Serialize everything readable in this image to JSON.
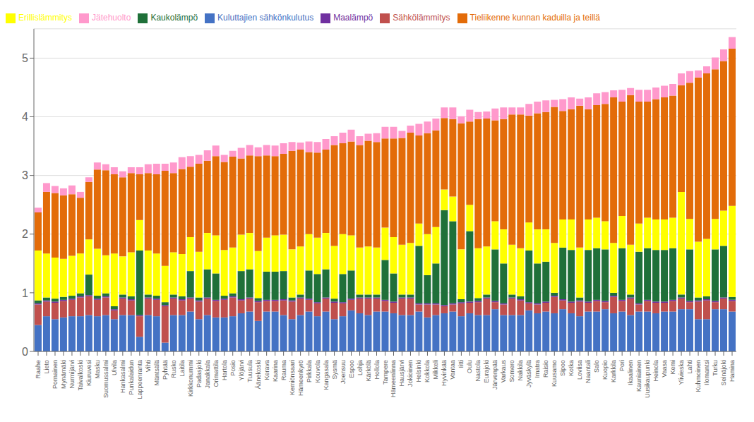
{
  "chart_data": {
    "type": "bar",
    "stacked": true,
    "grid": true,
    "legend": "upper left",
    "categories": [
      "Raahe",
      "Lieto",
      "Pornainen",
      "Mynämäki",
      "Nurmijärvi",
      "Taivalkoski",
      "Kiuruvesi",
      "Masku",
      "Suomussalmi",
      "Ulvila",
      "Hankasalmi",
      "Punkalaidun",
      "Lappeenranta",
      "Vihti",
      "Mäntsälä",
      "Pyhtää",
      "Rusko",
      "Laitila",
      "Kirkkonummi",
      "Padasjoki",
      "Janakkala",
      "Orimattila",
      "Hartola",
      "Posio",
      "Ylöjärvi",
      "Tuusula",
      "Äänekoski",
      "Kerava",
      "Kaarina",
      "Rauma",
      "Kemiönsaari",
      "Hämeenkyrö",
      "Pirkkala",
      "Kouvola",
      "Kangasala",
      "Sysmä",
      "Joensuu",
      "Espoo",
      "Lohja",
      "Kärkölä",
      "Hollola",
      "Tampere",
      "Hämeenlinna",
      "Hausjärvi",
      "Jokioinen",
      "Helsinki",
      "Kokkola",
      "Mikkeli",
      "Hyvinkää",
      "Vantaa",
      "Iitti",
      "Oulu",
      "Nastola",
      "Eurajoki",
      "Järvenpää",
      "Varkaus",
      "Somero",
      "Nakkila",
      "Jyväskylä",
      "Imatra",
      "Raisio",
      "Kuusamo",
      "Sipoo",
      "Kotka",
      "Loviisa",
      "Naantali",
      "Salo",
      "Kuopio",
      "Karkkila",
      "Pori",
      "Ikaalinen",
      "Kauniainen",
      "Uusikaupunki",
      "Heinola",
      "Vaasa",
      "Kemi",
      "Ylivieska",
      "Lahti",
      "Kuhmoinen",
      "Ilomantsi",
      "Turku",
      "Seinäjoki",
      "Hamina"
    ],
    "series": [
      {
        "name": "Kuluttajien sähkönkulutus",
        "color": "#4472C4",
        "values": [
          0.45,
          0.6,
          0.55,
          0.58,
          0.6,
          0.6,
          0.62,
          0.6,
          0.62,
          0.55,
          0.62,
          0.62,
          0.25,
          0.62,
          0.6,
          0.15,
          0.62,
          0.62,
          0.68,
          0.55,
          0.62,
          0.58,
          0.58,
          0.6,
          0.65,
          0.68,
          0.52,
          0.68,
          0.68,
          0.62,
          0.55,
          0.62,
          0.68,
          0.6,
          0.68,
          0.55,
          0.6,
          0.7,
          0.65,
          0.62,
          0.68,
          0.68,
          0.65,
          0.62,
          0.62,
          0.68,
          0.58,
          0.62,
          0.65,
          0.68,
          0.6,
          0.65,
          0.62,
          0.62,
          0.72,
          0.62,
          0.62,
          0.62,
          0.7,
          0.65,
          0.68,
          0.65,
          0.72,
          0.65,
          0.6,
          0.68,
          0.68,
          0.72,
          0.65,
          0.68,
          0.62,
          0.68,
          0.68,
          0.65,
          0.68,
          0.68,
          0.72,
          0.72,
          0.55,
          0.55,
          0.72,
          0.72,
          0.68
        ]
      },
      {
        "name": "Sähkölämmitys",
        "color": "#C0504D",
        "values": [
          0.35,
          0.25,
          0.28,
          0.28,
          0.28,
          0.32,
          0.32,
          0.28,
          0.3,
          0.15,
          0.28,
          0.25,
          0.35,
          0.28,
          0.28,
          0.62,
          0.28,
          0.25,
          0.22,
          0.3,
          0.28,
          0.28,
          0.3,
          0.32,
          0.22,
          0.22,
          0.32,
          0.18,
          0.18,
          0.25,
          0.3,
          0.28,
          0.2,
          0.22,
          0.22,
          0.28,
          0.22,
          0.18,
          0.25,
          0.28,
          0.22,
          0.18,
          0.18,
          0.28,
          0.28,
          0.12,
          0.22,
          0.18,
          0.12,
          0.12,
          0.22,
          0.18,
          0.22,
          0.28,
          0.12,
          0.18,
          0.28,
          0.25,
          0.12,
          0.15,
          0.15,
          0.28,
          0.15,
          0.18,
          0.25,
          0.15,
          0.18,
          0.12,
          0.28,
          0.18,
          0.28,
          0.12,
          0.18,
          0.18,
          0.15,
          0.18,
          0.18,
          0.12,
          0.3,
          0.32,
          0.12,
          0.18,
          0.18
        ]
      },
      {
        "name": "Maalämpö",
        "color": "#7030A0",
        "values": [
          0.02,
          0.02,
          0.02,
          0.02,
          0.02,
          0.02,
          0.02,
          0.02,
          0.02,
          0.02,
          0.02,
          0.02,
          0.02,
          0.02,
          0.02,
          0.02,
          0.02,
          0.02,
          0.02,
          0.02,
          0.02,
          0.02,
          0.02,
          0.02,
          0.02,
          0.02,
          0.02,
          0.02,
          0.02,
          0.02,
          0.02,
          0.02,
          0.02,
          0.02,
          0.02,
          0.02,
          0.02,
          0.02,
          0.02,
          0.02,
          0.02,
          0.02,
          0.02,
          0.02,
          0.02,
          0.02,
          0.02,
          0.02,
          0.02,
          0.02,
          0.02,
          0.02,
          0.02,
          0.02,
          0.02,
          0.02,
          0.02,
          0.02,
          0.02,
          0.02,
          0.02,
          0.02,
          0.02,
          0.02,
          0.02,
          0.02,
          0.02,
          0.02,
          0.02,
          0.02,
          0.02,
          0.02,
          0.02,
          0.02,
          0.02,
          0.02,
          0.02,
          0.02,
          0.02,
          0.02,
          0.02,
          0.02,
          0.02
        ]
      },
      {
        "name": "Kaukolämpö",
        "color": "#1F7039",
        "values": [
          0.05,
          0.05,
          0.05,
          0.05,
          0.05,
          0.05,
          0.35,
          0.05,
          0.05,
          0.05,
          0.05,
          0.05,
          1.1,
          0.05,
          0.05,
          0.05,
          0.05,
          0.05,
          0.45,
          0.05,
          0.48,
          0.45,
          0.05,
          0.05,
          0.48,
          0.48,
          0.05,
          0.48,
          0.48,
          0.48,
          0.05,
          0.05,
          0.48,
          0.48,
          0.48,
          0.05,
          0.48,
          0.48,
          0.05,
          0.05,
          0.05,
          0.68,
          0.48,
          0.05,
          0.05,
          0.98,
          0.48,
          0.68,
          1.62,
          1.4,
          0.05,
          1.2,
          0.05,
          0.05,
          0.88,
          0.68,
          0.05,
          0.05,
          0.88,
          0.68,
          0.68,
          0.05,
          0.88,
          0.88,
          0.05,
          0.88,
          0.88,
          0.88,
          0.05,
          0.88,
          0.05,
          0.88,
          0.88,
          0.88,
          0.88,
          0.88,
          0.05,
          0.88,
          0.05,
          0.05,
          0.88,
          0.88,
          0.05
        ]
      },
      {
        "name": "Erillislämmitys",
        "color": "#FFFF00",
        "values": [
          0.85,
          0.75,
          0.7,
          0.65,
          0.68,
          0.68,
          0.6,
          0.8,
          0.65,
          0.9,
          0.65,
          0.75,
          0.52,
          0.75,
          0.72,
          0.62,
          0.72,
          0.72,
          0.58,
          0.78,
          0.62,
          0.65,
          0.78,
          0.78,
          0.62,
          0.62,
          0.8,
          0.58,
          0.62,
          0.62,
          0.82,
          0.82,
          0.62,
          0.62,
          0.62,
          0.9,
          0.68,
          0.6,
          0.8,
          0.82,
          0.8,
          0.55,
          0.62,
          0.85,
          0.88,
          0.38,
          0.7,
          0.62,
          0.35,
          0.42,
          0.85,
          0.45,
          0.85,
          0.82,
          0.48,
          0.58,
          0.85,
          0.82,
          0.48,
          0.58,
          0.55,
          0.85,
          0.48,
          0.52,
          0.85,
          0.52,
          0.52,
          0.48,
          0.85,
          0.55,
          0.85,
          0.48,
          0.52,
          0.52,
          0.52,
          0.52,
          1.75,
          0.52,
          0.95,
          0.98,
          0.52,
          0.6,
          1.55
        ]
      },
      {
        "name": "Tieliikenne kunnan kaduilla ja teillä",
        "color": "#E36C09",
        "values": [
          0.65,
          1.05,
          1.1,
          1.08,
          1.05,
          0.95,
          0.98,
          1.35,
          1.45,
          1.35,
          1.35,
          1.35,
          0.78,
          1.32,
          1.35,
          1.62,
          1.35,
          1.45,
          1.2,
          1.5,
          1.23,
          1.35,
          1.5,
          1.55,
          1.3,
          1.32,
          1.62,
          1.4,
          1.35,
          1.38,
          1.68,
          1.65,
          1.4,
          1.45,
          1.42,
          1.72,
          1.55,
          1.6,
          1.75,
          1.8,
          1.8,
          1.52,
          1.68,
          1.82,
          1.88,
          1.5,
          1.72,
          1.65,
          1.22,
          1.32,
          2.15,
          1.42,
          2.2,
          2.18,
          1.72,
          1.88,
          2.22,
          2.28,
          1.82,
          1.98,
          2.0,
          2.32,
          1.85,
          1.88,
          2.42,
          1.88,
          1.92,
          2.0,
          2.48,
          1.95,
          2.55,
          2.08,
          1.98,
          2.05,
          2.08,
          2.08,
          1.82,
          2.32,
          2.8,
          2.82,
          2.55,
          2.55,
          2.68
        ]
      },
      {
        "name": "Jätehuolto",
        "color": "#FF99CC",
        "values": [
          0.08,
          0.15,
          0.12,
          0.12,
          0.15,
          0.1,
          0.08,
          0.12,
          0.1,
          0.12,
          0.1,
          0.1,
          0.12,
          0.15,
          0.18,
          0.12,
          0.18,
          0.2,
          0.18,
          0.15,
          0.18,
          0.18,
          0.12,
          0.1,
          0.18,
          0.18,
          0.15,
          0.18,
          0.18,
          0.18,
          0.15,
          0.12,
          0.18,
          0.18,
          0.18,
          0.15,
          0.18,
          0.2,
          0.15,
          0.12,
          0.15,
          0.2,
          0.2,
          0.12,
          0.12,
          0.2,
          0.2,
          0.2,
          0.18,
          0.2,
          0.12,
          0.2,
          0.12,
          0.12,
          0.2,
          0.2,
          0.12,
          0.12,
          0.2,
          0.2,
          0.2,
          0.12,
          0.2,
          0.2,
          0.12,
          0.2,
          0.2,
          0.2,
          0.12,
          0.2,
          0.12,
          0.2,
          0.2,
          0.2,
          0.2,
          0.2,
          0.2,
          0.2,
          0.12,
          0.12,
          0.2,
          0.2,
          0.2
        ]
      }
    ],
    "ylim": [
      0,
      5.5
    ],
    "yticks": [
      0,
      1,
      2,
      3,
      4,
      5
    ]
  }
}
